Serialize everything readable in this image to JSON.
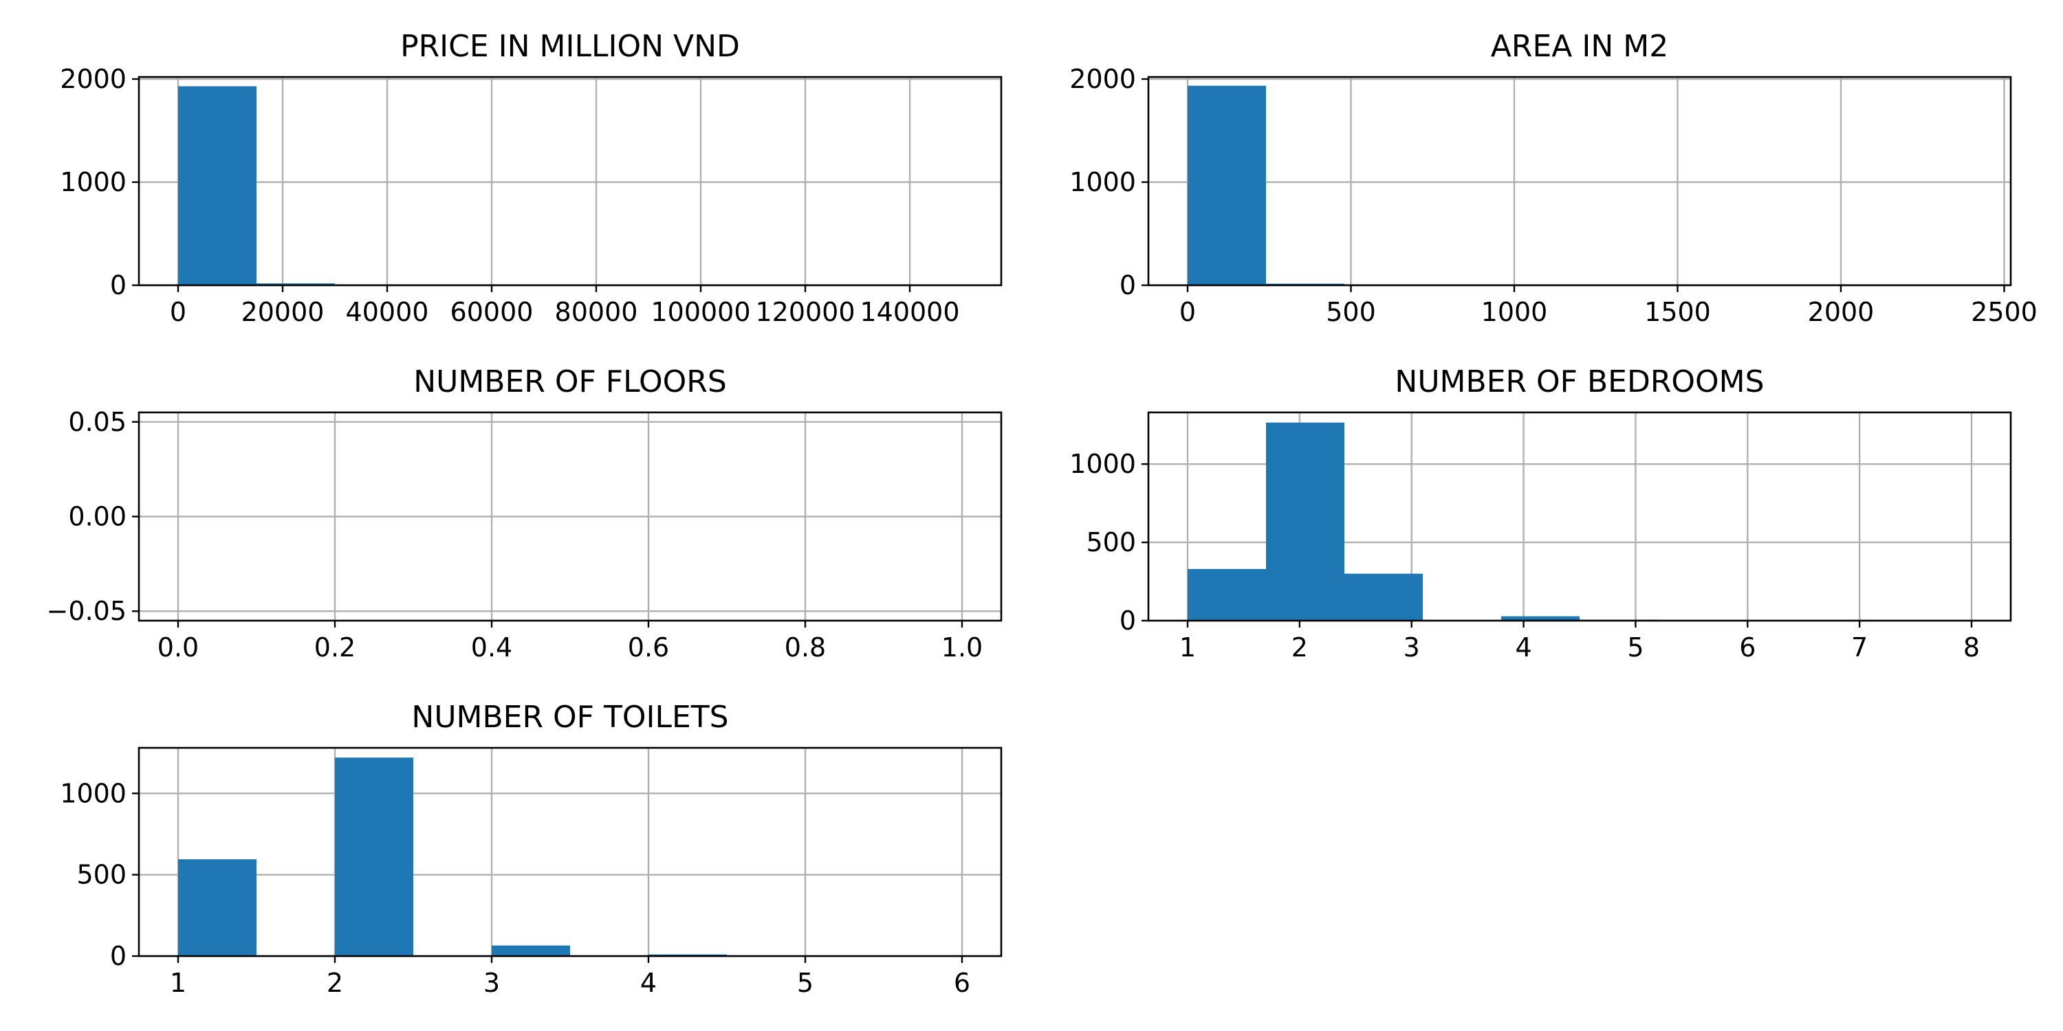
{
  "colors": {
    "bar": "#1f77b4",
    "grid": "#b0b0b0",
    "axis": "#000000",
    "background": "#ffffff"
  },
  "chart_data": [
    {
      "type": "bar",
      "title": "PRICE IN MILLION VND",
      "xlabel": "",
      "ylabel": "",
      "xlim": [
        -7500,
        157500
      ],
      "ylim": [
        0,
        2020
      ],
      "grid": true,
      "bin_edges": [
        0,
        15000,
        30000,
        45000,
        60000,
        75000,
        90000,
        105000,
        120000,
        135000,
        150000
      ],
      "values": [
        1930,
        18,
        2,
        1,
        0,
        0,
        0,
        0,
        0,
        1
      ],
      "xticks": [
        0,
        20000,
        40000,
        60000,
        80000,
        100000,
        120000,
        140000
      ],
      "xtick_labels": [
        "0",
        "20000",
        "40000",
        "60000",
        "80000",
        "100000",
        "120000",
        "140000"
      ],
      "yticks": [
        0,
        1000,
        2000
      ],
      "ytick_labels": [
        "0",
        "1000",
        "2000"
      ]
    },
    {
      "type": "bar",
      "title": "AREA IN M2",
      "xlabel": "",
      "ylabel": "",
      "xlim": [
        -120,
        2520
      ],
      "ylim": [
        0,
        2020
      ],
      "grid": true,
      "bin_edges": [
        0,
        240,
        480,
        720,
        960,
        1200,
        1440,
        1680,
        1920,
        2160,
        2400
      ],
      "values": [
        1935,
        15,
        2,
        0,
        0,
        0,
        0,
        0,
        0,
        1
      ],
      "xticks": [
        0,
        500,
        1000,
        1500,
        2000,
        2500
      ],
      "xtick_labels": [
        "0",
        "500",
        "1000",
        "1500",
        "2000",
        "2500"
      ],
      "yticks": [
        0,
        1000,
        2000
      ],
      "ytick_labels": [
        "0",
        "1000",
        "2000"
      ]
    },
    {
      "type": "bar",
      "title": "NUMBER OF FLOORS",
      "xlabel": "",
      "ylabel": "",
      "xlim": [
        -0.05,
        1.05
      ],
      "ylim": [
        -0.055,
        0.055
      ],
      "grid": true,
      "bin_edges": [],
      "values": [],
      "xticks": [
        0,
        0.2,
        0.4,
        0.6,
        0.8,
        1.0
      ],
      "xtick_labels": [
        "0.0",
        "0.2",
        "0.4",
        "0.6",
        "0.8",
        "1.0"
      ],
      "yticks": [
        -0.05,
        0,
        0.05
      ],
      "ytick_labels": [
        "−0.05",
        "0.00",
        "0.05"
      ]
    },
    {
      "type": "bar",
      "title": "NUMBER OF BEDROOMS",
      "xlabel": "",
      "ylabel": "",
      "xlim": [
        0.65,
        8.35
      ],
      "ylim": [
        0,
        1330
      ],
      "grid": true,
      "bin_edges": [
        1,
        1.7,
        2.4,
        3.1,
        3.8,
        4.5,
        5.2,
        5.9,
        6.6,
        7.3,
        8
      ],
      "values": [
        330,
        1265,
        300,
        0,
        28,
        6,
        1,
        0,
        0,
        1
      ],
      "xticks": [
        1,
        2,
        3,
        4,
        5,
        6,
        7,
        8
      ],
      "xtick_labels": [
        "1",
        "2",
        "3",
        "4",
        "5",
        "6",
        "7",
        "8"
      ],
      "yticks": [
        0,
        500,
        1000
      ],
      "ytick_labels": [
        "0",
        "500",
        "1000"
      ]
    },
    {
      "type": "bar",
      "title": "NUMBER OF TOILETS",
      "xlabel": "",
      "ylabel": "",
      "xlim": [
        0.75,
        6.25
      ],
      "ylim": [
        0,
        1280
      ],
      "grid": true,
      "bin_edges": [
        1,
        1.5,
        2,
        2.5,
        3,
        3.5,
        4,
        4.5,
        5,
        5.5,
        6
      ],
      "values": [
        595,
        0,
        1220,
        0,
        65,
        0,
        10,
        0,
        2,
        1
      ],
      "xticks": [
        1,
        2,
        3,
        4,
        5,
        6
      ],
      "xtick_labels": [
        "1",
        "2",
        "3",
        "4",
        "5",
        "6"
      ],
      "yticks": [
        0,
        500,
        1000
      ],
      "ytick_labels": [
        "0",
        "500",
        "1000"
      ]
    }
  ]
}
